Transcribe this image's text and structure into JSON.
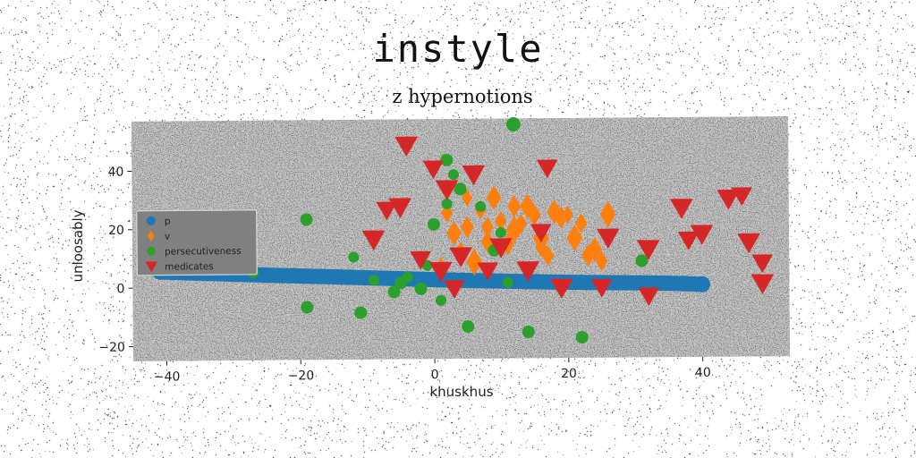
{
  "figure_title": "instyle",
  "chart_data": {
    "type": "scatter",
    "title": "z hypernotions",
    "xlabel": "khuskhus",
    "ylabel": "unloosably",
    "xlim": [
      -45,
      53
    ],
    "ylim": [
      -25,
      57
    ],
    "xticks": [
      -40,
      -20,
      0,
      20,
      40
    ],
    "yticks": [
      -20,
      0,
      20,
      40
    ],
    "grid": true,
    "legend_position": "center-left",
    "background_color": "#808080",
    "series": [
      {
        "name": "p",
        "color": "#1f77b4",
        "marker": "circle",
        "x": [
          -41,
          -36,
          -31,
          -26,
          -21,
          -16,
          -11,
          -6,
          -1,
          4,
          9,
          14,
          19,
          24,
          29,
          34,
          37,
          40
        ],
        "y": [
          5.5,
          5.0,
          4.6,
          4.2,
          3.8,
          3.4,
          3.0,
          2.6,
          2.2,
          1.8,
          1.5,
          1.2,
          0.9,
          0.7,
          0.5,
          0.3,
          0.1,
          -0.2
        ]
      },
      {
        "name": "v",
        "color": "#ff7f0e",
        "marker": "diamond",
        "x": [
          2,
          3,
          4,
          5,
          6,
          7,
          8,
          9,
          10,
          11,
          12,
          13,
          14,
          15,
          16,
          17,
          18,
          19,
          21,
          22,
          23,
          24,
          25,
          26,
          5,
          8,
          12,
          16,
          20,
          1
        ],
        "y": [
          25,
          18,
          12,
          20,
          8,
          26,
          15,
          30,
          22,
          14,
          19,
          21,
          27,
          24,
          16,
          10,
          25,
          23,
          16,
          21,
          10,
          12,
          8,
          24,
          30,
          20,
          27,
          13,
          24,
          6
        ],
        "sizes": [
          9,
          11,
          8,
          10,
          12,
          9,
          10,
          11,
          9,
          10,
          12,
          9,
          11,
          10,
          12,
          9,
          11,
          10,
          12,
          9,
          10,
          11,
          9,
          12,
          8,
          9,
          10,
          9,
          8,
          10
        ]
      },
      {
        "name": "persecutiveness",
        "color": "#2ca02c",
        "marker": "circle",
        "x": [
          12,
          -19,
          -19,
          -12,
          -11,
          -9,
          -6,
          -5,
          -4,
          -2,
          -1,
          0,
          1,
          2,
          3,
          4,
          5,
          7,
          9,
          10,
          11,
          14,
          22,
          31,
          -27,
          2
        ],
        "y": [
          55,
          23,
          -7,
          10,
          -9,
          2,
          -2,
          1,
          3,
          -1,
          7,
          21,
          -5,
          43,
          38,
          33,
          -14,
          27,
          12,
          18,
          1,
          -16,
          -18,
          8,
          5,
          28
        ],
        "sizes": [
          8,
          7,
          7,
          6,
          7,
          6,
          7,
          7,
          6,
          7,
          6,
          7,
          6,
          7,
          6,
          7,
          7,
          6,
          7,
          6,
          6,
          7,
          7,
          7,
          6,
          6
        ]
      },
      {
        "name": "medicates",
        "color": "#d62728",
        "marker": "triangle-down",
        "x": [
          -4,
          0,
          2,
          6,
          17,
          -5,
          -7,
          -9,
          -2,
          1,
          4,
          8,
          14,
          16,
          19,
          25,
          26,
          32,
          32,
          37,
          38,
          40,
          44,
          46,
          47,
          49,
          49,
          3,
          10
        ],
        "y": [
          48,
          40,
          33,
          38,
          40,
          27,
          26,
          16,
          9,
          5,
          10,
          5,
          5,
          18,
          -1,
          -1,
          16,
          12,
          -4,
          26,
          15,
          17,
          29,
          30,
          14,
          7,
          0,
          -1,
          13
        ],
        "sizes": [
          12,
          11,
          12,
          12,
          11,
          12,
          11,
          12,
          11,
          12,
          12,
          11,
          12,
          11,
          12,
          11,
          12,
          12,
          11,
          12,
          11,
          12,
          12,
          11,
          12,
          11,
          12,
          11,
          12
        ]
      }
    ]
  }
}
